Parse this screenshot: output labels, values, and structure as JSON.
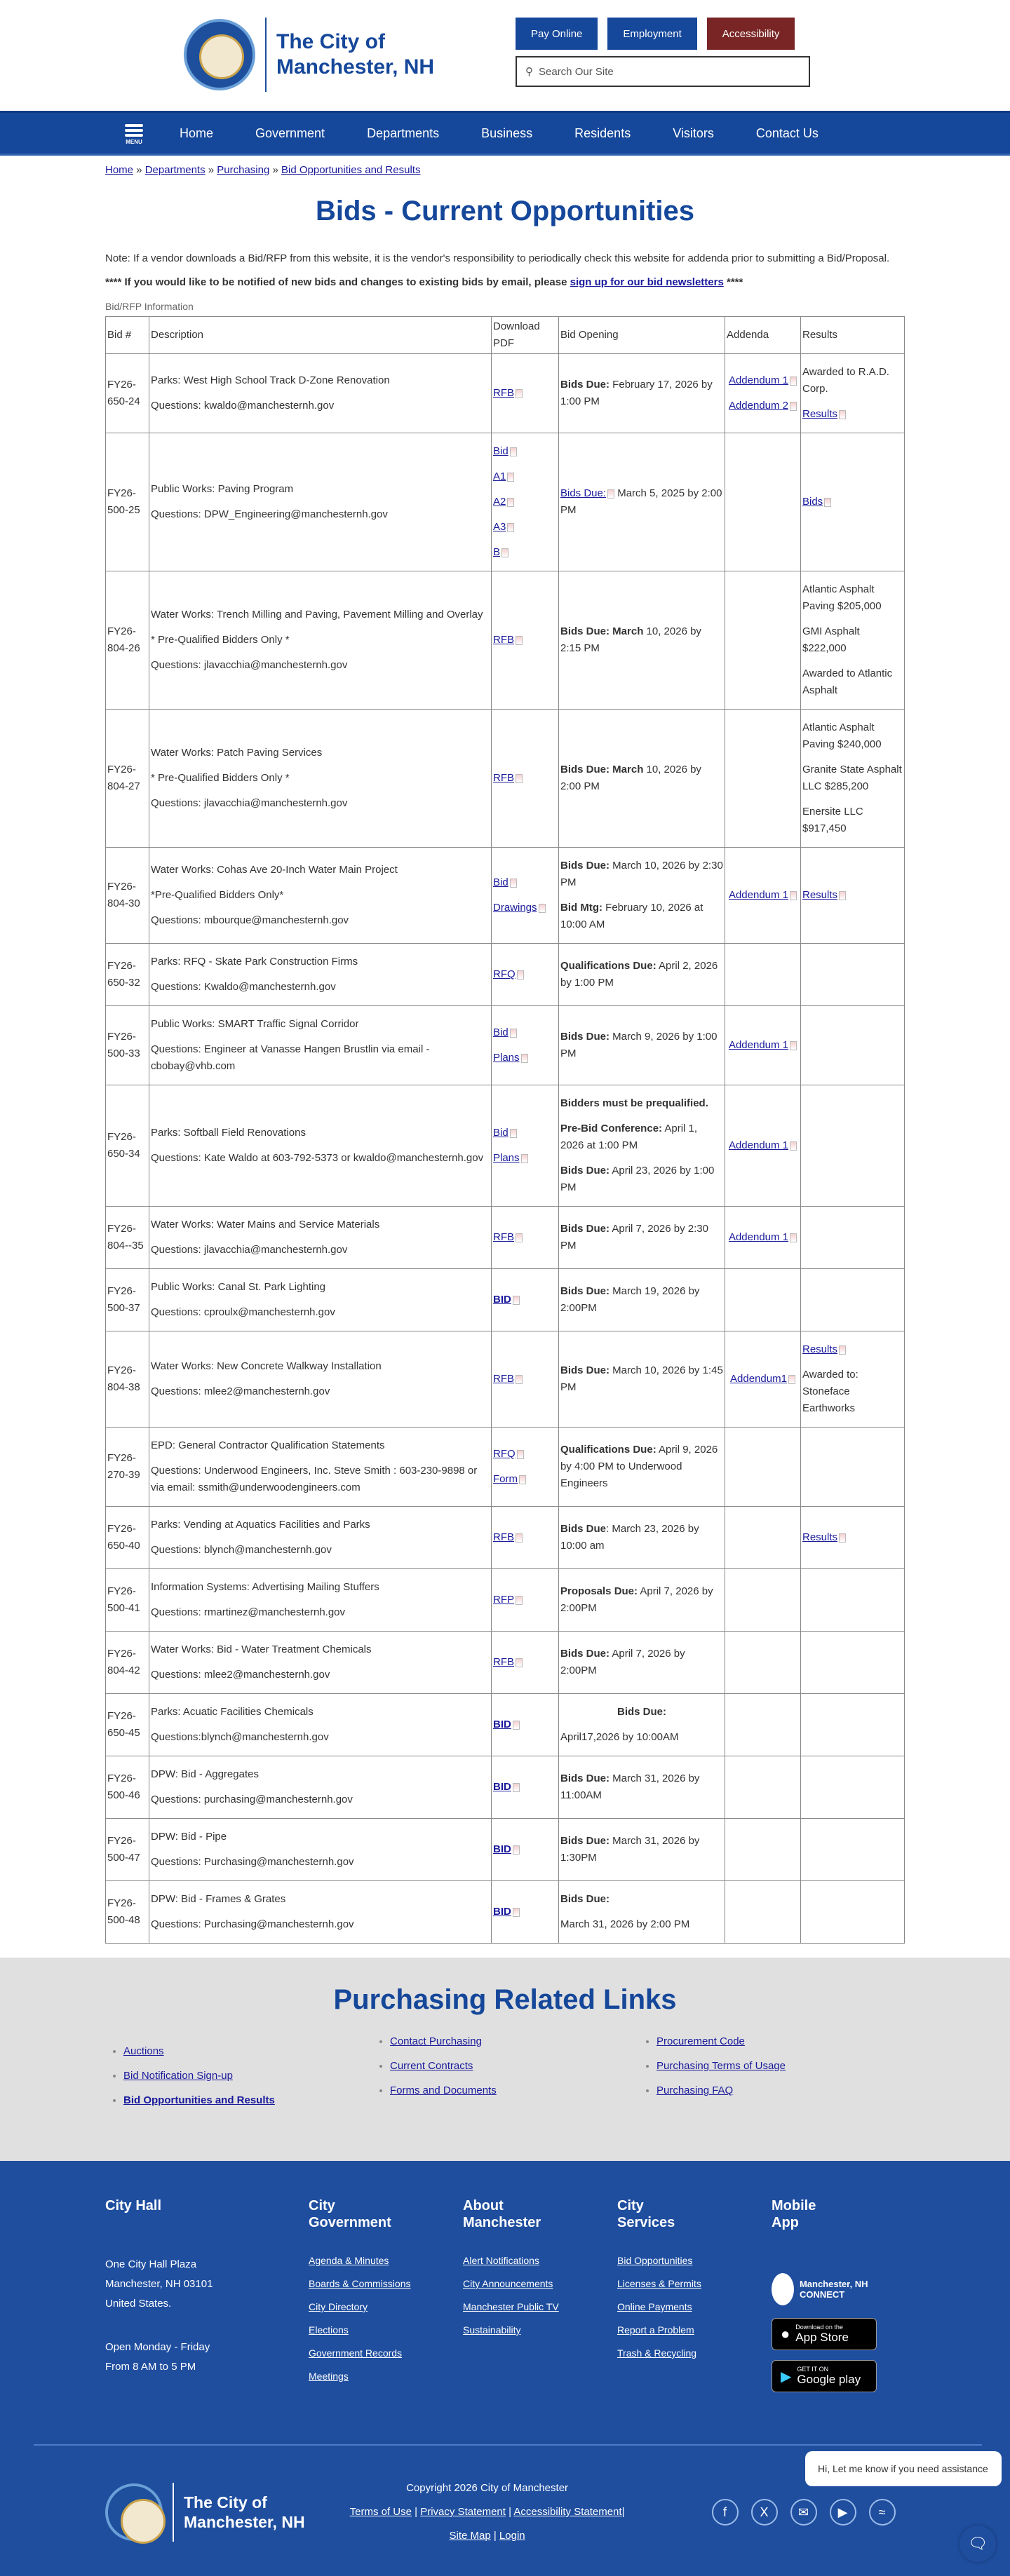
{
  "header": {
    "logo_line1": "The City of",
    "logo_line2": "Manchester, NH",
    "buttons": [
      "Pay Online",
      "Employment",
      "Accessibility"
    ],
    "search_placeholder": "Search Our Site"
  },
  "nav": {
    "menu_label": "MENU",
    "items": [
      "Home",
      "Government",
      "Departments",
      "Business",
      "Residents",
      "Visitors",
      "Contact Us"
    ]
  },
  "breadcrumb": [
    "Home",
    "Departments",
    "Purchasing",
    "Bid Opportunities and Results"
  ],
  "page_title": "Bids - Current Opportunities",
  "note": "Note: If a vendor downloads a Bid/RFP from this website, it is the vendor's responsibility to periodically check this website for addenda prior to submitting a Bid/Proposal.",
  "notify": {
    "before": "**** If you would like to be notified of new bids and changes to existing bids by email, please ",
    "link": "sign up for our bid newsletters",
    "after": " ****"
  },
  "table": {
    "caption": "Bid/RFP Information",
    "headers": [
      "Bid #",
      "Description",
      "Download PDF",
      "Bid Opening",
      "Addenda",
      "Results"
    ],
    "rows": [
      {
        "bid": "FY26-650-24",
        "desc": [
          "Parks: West High School Track D-Zone Renovation",
          "Questions: kwaldo@manchesternh.gov"
        ],
        "pdf": [
          "RFB"
        ],
        "opening": [
          {
            "b": "Bids Due:",
            "t": " February 17, 2026 by 1:00 PM"
          }
        ],
        "addenda": [
          "Addendum 1",
          "Addendum 2"
        ],
        "results": [
          {
            "t": "Awarded to R.A.D. Corp."
          },
          {
            "link": "Results"
          }
        ]
      },
      {
        "bid": "FY26-500-25",
        "desc": [
          "Public Works:  Paving Program",
          "Questions:  DPW_Engineering@manchesternh.gov"
        ],
        "pdf": [
          "Bid",
          "A1",
          "A2",
          "A3",
          "B"
        ],
        "opening": [
          {
            "link": "Bids Due:",
            "t": "  March 5, 2025 by 2:00 PM"
          }
        ],
        "addenda": [],
        "results": [
          {
            "link": "Bids"
          }
        ]
      },
      {
        "bid": "FY26-804-26",
        "desc": [
          "Water Works: Trench Milling and Paving, Pavement Milling and Overlay",
          "* Pre-Qualified Bidders Only *",
          "  Questions: jlavacchia@manchesternh.gov"
        ],
        "pdf": [
          "RFB"
        ],
        "opening": [
          {
            "b": "Bids Due: March",
            "t": " 10, 2026 by 2:15 PM"
          }
        ],
        "addenda": [],
        "results": [
          {
            "t": "Atlantic Asphalt Paving $205,000"
          },
          {
            "t": "GMI Asphalt $222,000"
          },
          {
            "t": "Awarded to Atlantic Asphalt"
          }
        ]
      },
      {
        "bid": "FY26-804-27",
        "desc": [
          "Water Works: Patch Paving Services",
          "* Pre-Qualified Bidders Only *",
          "Questions: jlavacchia@manchesternh.gov"
        ],
        "pdf": [
          "RFB"
        ],
        "opening": [
          {
            "b": "Bids Due: March",
            "t": " 10, 2026 by 2:00 PM"
          }
        ],
        "addenda": [],
        "results": [
          {
            "t": "Atlantic Asphalt Paving $240,000"
          },
          {
            "t": "Granite State Asphalt LLC $285,200"
          },
          {
            "t": "Enersite LLC $917,450"
          }
        ]
      },
      {
        "bid": "FY26-804-30",
        "desc": [
          "Water Works: Cohas Ave 20-Inch Water Main Project",
          "*Pre-Qualified Bidders Only*",
          "Questions: mbourque@manchesternh.gov"
        ],
        "pdf": [
          "Bid",
          "Drawings"
        ],
        "opening": [
          {
            "b": "Bids Due:",
            "t": "  March 10, 2026 by 2:30 PM"
          },
          {
            "b": "Bid Mtg:",
            "t": "  February 10, 2026 at 10:00 AM"
          }
        ],
        "addenda": [
          "Addendum 1"
        ],
        "results": [
          {
            "link": "Results"
          }
        ]
      },
      {
        "bid": "FY26-650-32",
        "desc": [
          "Parks:  RFQ - Skate Park Construction Firms",
          "Questions:  Kwaldo@manchesternh.gov"
        ],
        "pdf": [
          "RFQ"
        ],
        "opening": [
          {
            "b": "Qualifications Due:",
            "t": " April 2, 2026 by 1:00 PM"
          }
        ],
        "addenda": [],
        "results": []
      },
      {
        "bid": "FY26-500-33",
        "desc": [
          "Public Works:  SMART Traffic Signal Corridor",
          "Questions:  Engineer at Vanasse Hangen Brustlin via email - cbobay@vhb.com"
        ],
        "pdf": [
          "Bid",
          "Plans"
        ],
        "opening": [
          {
            "b": "Bids Due:",
            "t": "  March 9, 2026 by 1:00 PM"
          }
        ],
        "addenda": [
          "Addendum 1"
        ],
        "results": []
      },
      {
        "bid": "FY26-650-34",
        "desc": [
          "Parks: Softball Field Renovations",
          "Questions:  Kate Waldo at 603-792-5373 or kwaldo@manchesternh.gov"
        ],
        "pdf": [
          "Bid",
          "Plans"
        ],
        "opening": [
          {
            "b": "Bidders must be prequalified.",
            "t": ""
          },
          {
            "b": "Pre-Bid Conference:",
            "t": "  April 1, 2026 at 1:00 PM"
          },
          {
            "b": "Bids Due:",
            "t": "  April 23, 2026 by 1:00 PM"
          }
        ],
        "addenda": [
          "Addendum 1"
        ],
        "results": []
      },
      {
        "bid": "FY26-804--35",
        "desc": [
          "Water Works: Water Mains and Service Materials",
          "Questions: jlavacchia@manchesternh.gov"
        ],
        "pdf": [
          "RFB"
        ],
        "opening": [
          {
            "b": "Bids Due:",
            "t": " April 7, 2026 by 2:30 PM"
          }
        ],
        "addenda": [
          "Addendum 1"
        ],
        "results": []
      },
      {
        "bid": "FY26-500-37",
        "desc": [
          "Public Works:  Canal St. Park Lighting",
          "Questions:  cproulx@manchesternh.gov"
        ],
        "pdf": [
          "BID"
        ],
        "opening": [
          {
            "b": "Bids Due:",
            "t": "  March 19, 2026 by 2:00PM"
          }
        ],
        "addenda": [],
        "results": []
      },
      {
        "bid": "FY26-804-38",
        "desc": [
          "Water Works: New Concrete Walkway Installation",
          "Questions: mlee2@manchesternh.gov"
        ],
        "pdf": [
          "RFB"
        ],
        "opening": [
          {
            "b": "Bids Due:",
            "t": " March 10, 2026 by 1:45 PM"
          }
        ],
        "addenda": [
          "Addendum1"
        ],
        "results": [
          {
            "link": "Results"
          },
          {
            "t": "Awarded to: Stoneface Earthworks"
          }
        ]
      },
      {
        "bid": "FY26-270-39",
        "desc": [
          "EPD:  General Contractor Qualification Statements",
          "Questions:  Underwood Engineers, Inc.  Steve Smith : 603-230-9898 or via email:  ssmith@underwoodengineers.com"
        ],
        "pdf": [
          "RFQ",
          "Form"
        ],
        "opening": [
          {
            "b": "Qualifications Due:",
            "t": "  April 9, 2026 by 4:00 PM to Underwood Engineers"
          }
        ],
        "addenda": [],
        "results": []
      },
      {
        "bid": "FY26-650-40",
        "desc": [
          "Parks: Vending at Aquatics Facilities and Parks",
          "Questions: blynch@manchesternh.gov"
        ],
        "pdf": [
          "RFB"
        ],
        "opening": [
          {
            "b": "Bids Due",
            "t": ": March 23, 2026 by 10:00 am"
          }
        ],
        "addenda": [],
        "results": [
          {
            "link": "Results"
          }
        ]
      },
      {
        "bid": "FY26-500-41",
        "desc": [
          "Information Systems:  Advertising Mailing Stuffers",
          "Questions:  rmartinez@manchesternh.gov"
        ],
        "pdf": [
          "RFP"
        ],
        "opening": [
          {
            "b": "Proposals Due:",
            "t": "  April 7, 2026 by 2:00PM"
          }
        ],
        "addenda": [],
        "results": []
      },
      {
        "bid": "FY26-804-42",
        "desc": [
          "Water Works:  Bid - Water Treatment Chemicals",
          "Questions:  mlee2@manchesternh.gov"
        ],
        "pdf": [
          "RFB"
        ],
        "opening": [
          {
            "b": "Bids Due:",
            "t": "  April 7, 2026 by 2:00PM"
          }
        ],
        "addenda": [],
        "results": []
      },
      {
        "bid": "FY26-650-45",
        "desc": [
          "Parks: Acuatic Facilities Chemicals",
          "Questions:blynch@manchesternh.gov"
        ],
        "pdf": [
          "BID"
        ],
        "opening": [
          {
            "b": "Bids Due:",
            "t": "",
            "center": true
          },
          {
            "t": " April17,2026 by 10:00AM"
          }
        ],
        "addenda": [],
        "results": []
      },
      {
        "bid": "FY26-500-46",
        "desc": [
          "DPW:  Bid - Aggregates",
          "Questions:  purchasing@manchesternh.gov"
        ],
        "pdf": [
          "BID"
        ],
        "opening": [
          {
            "b": "Bids Due:",
            "t": "  March 31, 2026 by 11:00AM"
          }
        ],
        "addenda": [],
        "results": []
      },
      {
        "bid": "FY26-500-47",
        "desc": [
          "DPW:  Bid - Pipe",
          "Questions:  Purchasing@manchesternh.gov"
        ],
        "pdf": [
          "BID"
        ],
        "opening": [
          {
            "b": "Bids Due:",
            "t": "  March 31, 2026 by 1:30PM"
          }
        ],
        "addenda": [],
        "results": []
      },
      {
        "bid": "FY26-500-48",
        "desc": [
          "DPW:  Bid - Frames & Grates",
          "Questions:  Purchasing@manchesternh.gov"
        ],
        "pdf": [
          "BID"
        ],
        "opening": [
          {
            "b": "Bids Due:",
            "t": ""
          },
          {
            "t": "March 31, 2026 by 2:00 PM"
          }
        ],
        "addenda": [],
        "results": []
      }
    ]
  },
  "related": {
    "title": "Purchasing Related Links",
    "columns": [
      [
        "Auctions",
        "Bid Notification Sign-up",
        "Bid Opportunities and Results"
      ],
      [
        "Contact Purchasing",
        "Current Contracts",
        "Forms and Documents"
      ],
      [
        "Procurement Code",
        "Purchasing Terms of Usage",
        "Purchasing FAQ"
      ]
    ]
  },
  "footer": {
    "city_hall": {
      "title": "City Hall",
      "address": [
        "One City Hall Plaza",
        "Manchester, NH 03101",
        "United States."
      ],
      "hours": [
        "Open Monday - Friday",
        "From 8 AM to 5 PM"
      ]
    },
    "columns": [
      {
        "title": "City Government",
        "links": [
          "Agenda & Minutes",
          "Boards & Commissions",
          "City Directory",
          "Elections",
          "Government Records",
          "Meetings"
        ]
      },
      {
        "title": "About Manchester",
        "links": [
          "Alert Notifications",
          "City Announcements",
          "Manchester Public TV",
          "Sustainability"
        ]
      },
      {
        "title": "City Services",
        "links": [
          "Bid Opportunities",
          "Licenses & Permits",
          "Online Payments",
          "Report a Problem",
          "Trash & Recycling"
        ]
      }
    ],
    "mobile": {
      "title": "Mobile App",
      "connect": "Manchester, NH CONNECT",
      "appstore_small": "Download on the",
      "appstore": "App Store",
      "google_small": "GET IT ON",
      "google": "Google play"
    },
    "copyright": "Copyright 2026 City of Manchester",
    "legal_links": [
      "Terms of Use",
      "Privacy Statement",
      "Accessibility Statement",
      "Site Map",
      "Login"
    ],
    "social": [
      "facebook-icon",
      "x-icon",
      "email-icon",
      "youtube-icon",
      "wifi-icon"
    ],
    "chat_message": "Hi, Let me know if you need assistance"
  },
  "colors": {
    "brand_blue": "#15479a",
    "accessibility_red": "#7a2525",
    "footer_blue": "#1f4e9f"
  }
}
